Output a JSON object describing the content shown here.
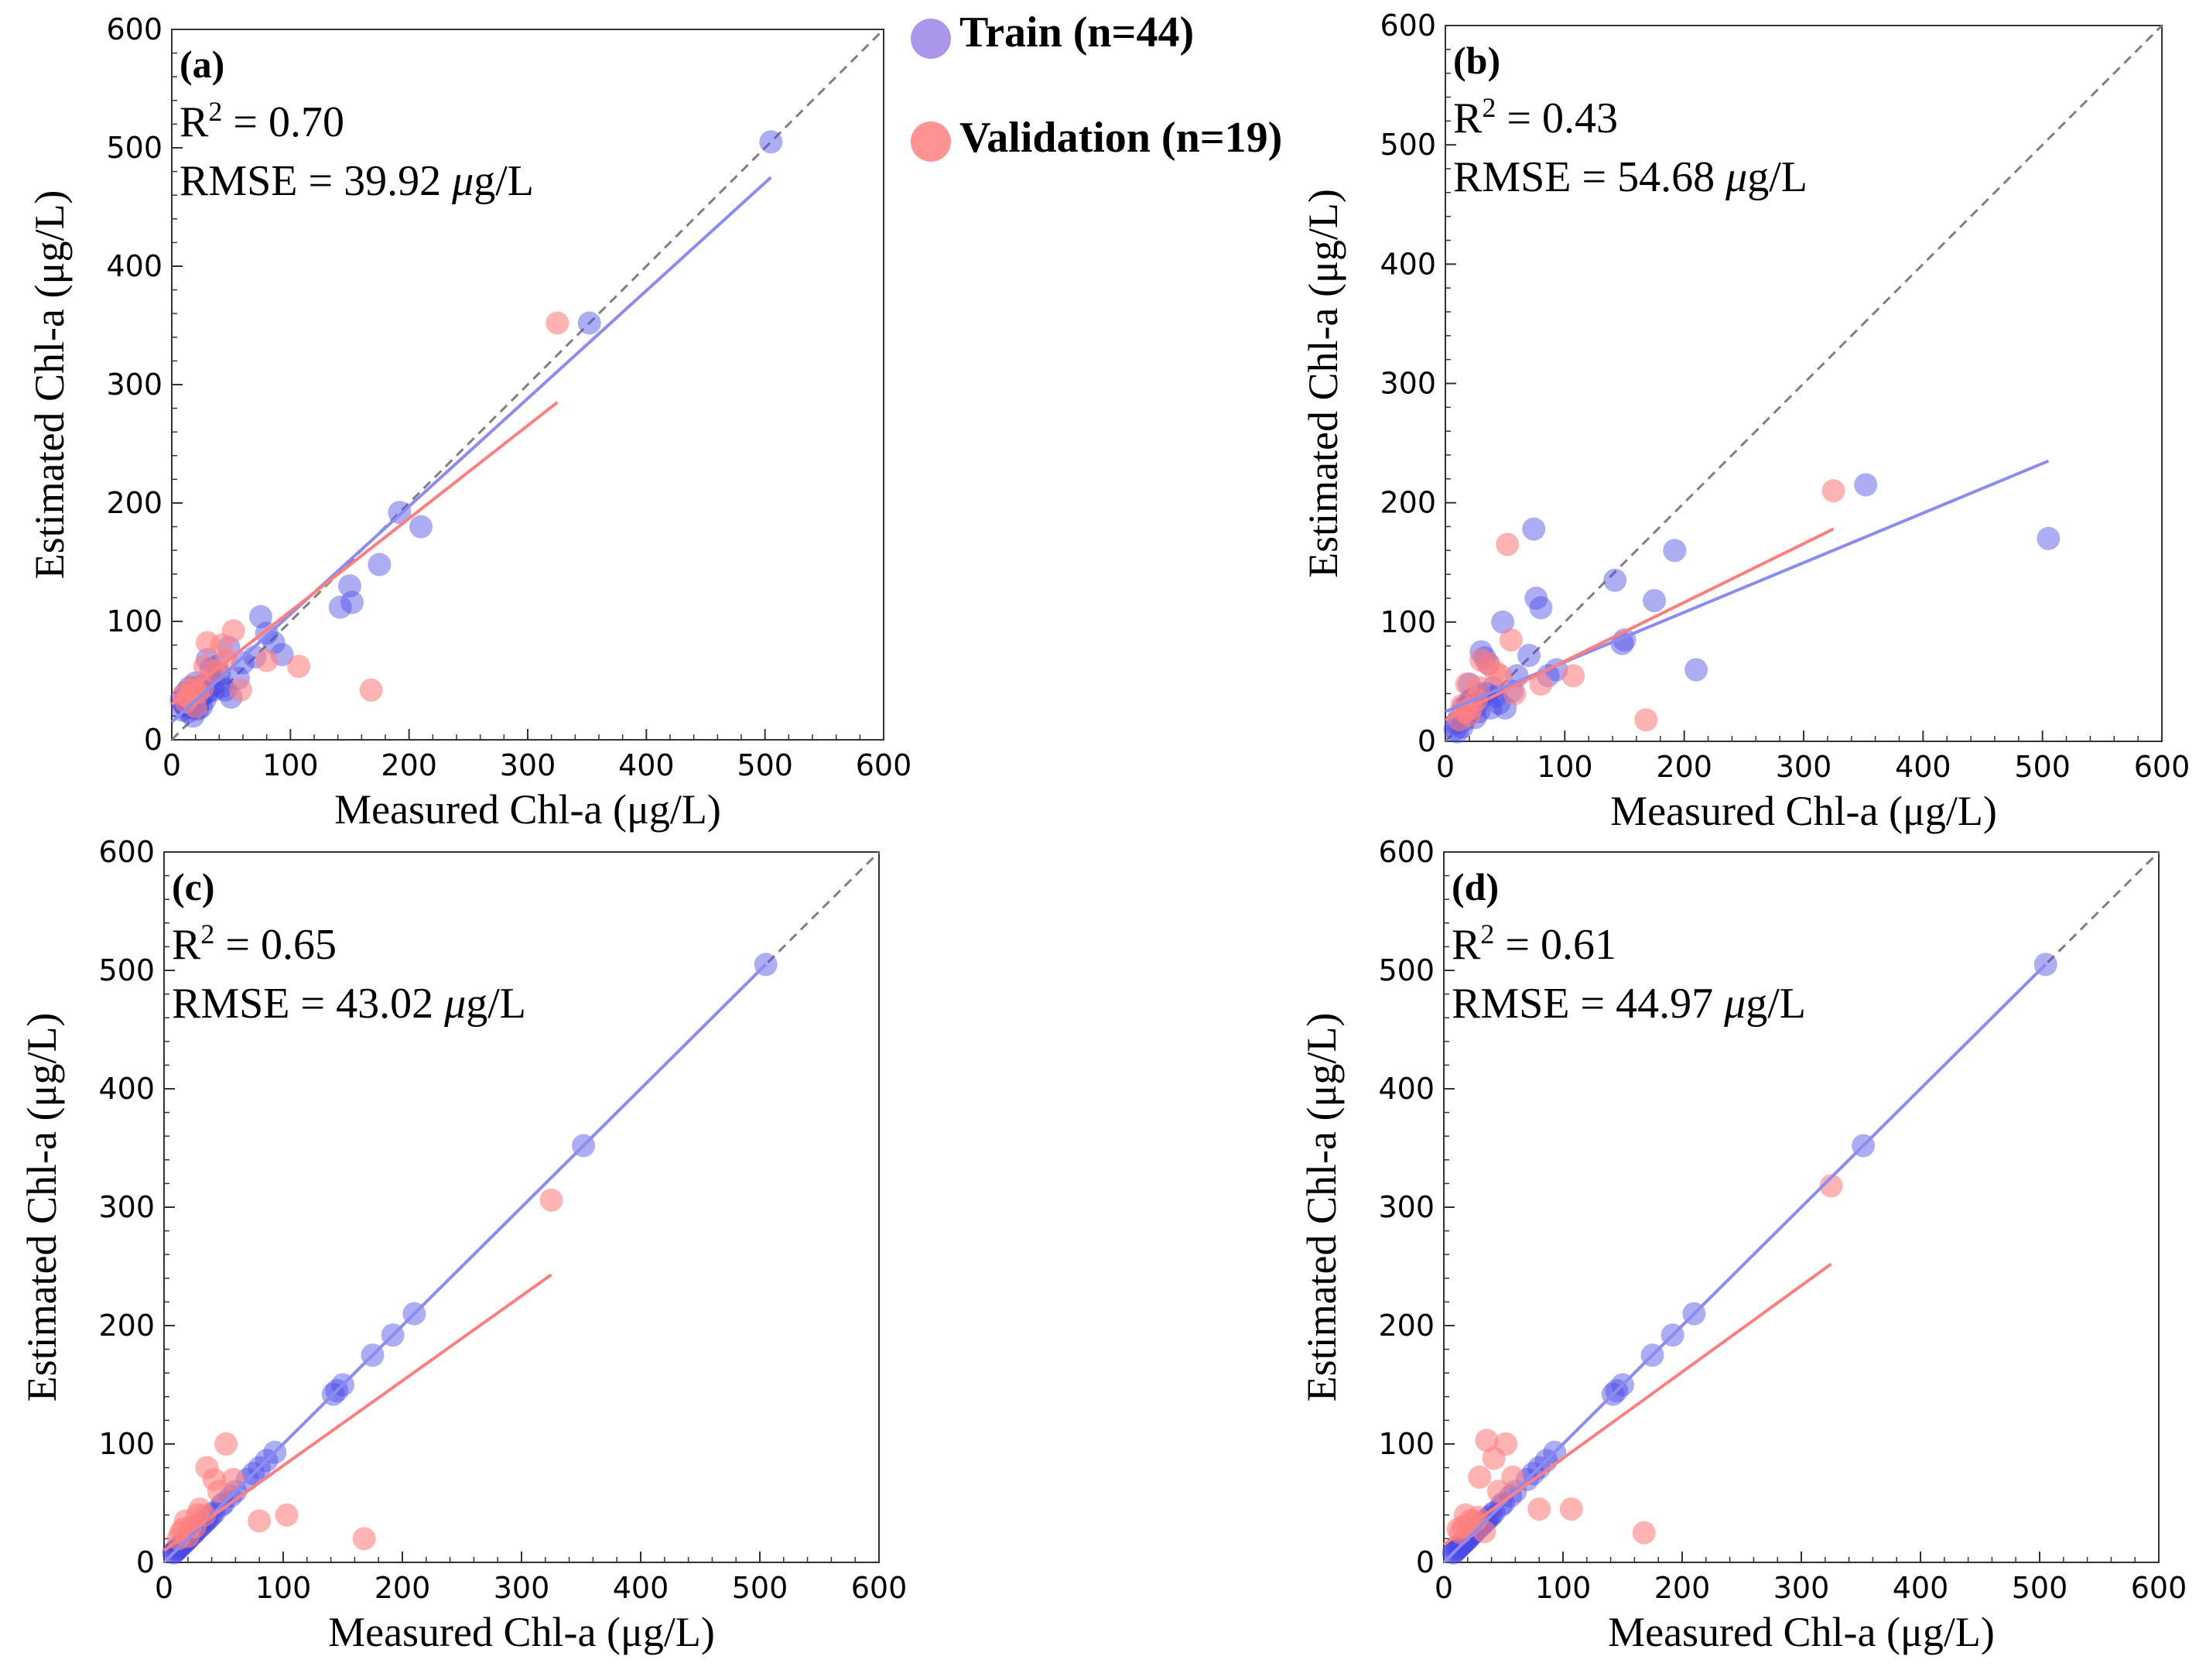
{
  "legend": {
    "items": [
      {
        "label": "Train (n=44)",
        "color": "#9b85e8"
      },
      {
        "label": "Validation (n=19)",
        "color": "#ff7f7f"
      }
    ]
  },
  "colors": {
    "train_point": "#4a4ae6",
    "train_line": "#8c8cf0",
    "validation_point": "#ff8080",
    "validation_line": "#ff7f7f",
    "identity_line": "#808080"
  },
  "chart_data": [
    {
      "type": "scatter",
      "panel": "(a)",
      "r2_label": "R",
      "r2_sup": "2",
      "r2_value": " = 0.70",
      "rmse_prefix": "RMSE = 39.92 ",
      "rmse_unit_mu": "μ",
      "rmse_unit_rest": "g/L",
      "xlabel": "Measured Chl-a (μg/L)",
      "ylabel": "Estimated Chl-a (μg/L)",
      "xlim": [
        0,
        600
      ],
      "ylim": [
        0,
        600
      ],
      "ticks": [
        0,
        100,
        200,
        300,
        400,
        500,
        600
      ],
      "train_points": [
        [
          505,
          505
        ],
        [
          352,
          352
        ],
        [
          210,
          180
        ],
        [
          192,
          192
        ],
        [
          175,
          148
        ],
        [
          150,
          130
        ],
        [
          152,
          116
        ],
        [
          142,
          112
        ],
        [
          93,
          72
        ],
        [
          86,
          82
        ],
        [
          80,
          90
        ],
        [
          75,
          104
        ],
        [
          70,
          70
        ],
        [
          56,
          52
        ],
        [
          50,
          36
        ],
        [
          48,
          78
        ],
        [
          40,
          55
        ],
        [
          36,
          48
        ],
        [
          33,
          60
        ],
        [
          30,
          68
        ],
        [
          30,
          40
        ],
        [
          26,
          38
        ],
        [
          24,
          45
        ],
        [
          22,
          32
        ],
        [
          20,
          48
        ],
        [
          18,
          27
        ],
        [
          16,
          36
        ],
        [
          14,
          24
        ],
        [
          12,
          40
        ],
        [
          10,
          30
        ],
        [
          9,
          25
        ],
        [
          8,
          34
        ],
        [
          35,
          42
        ],
        [
          42,
          45
        ],
        [
          28,
          34
        ],
        [
          20,
          38
        ],
        [
          15,
          44
        ],
        [
          25,
          28
        ],
        [
          45,
          42
        ],
        [
          60,
          65
        ],
        [
          38,
          62
        ],
        [
          18,
          20
        ],
        [
          22,
          26
        ],
        [
          12,
          28
        ]
      ],
      "validation_points": [
        [
          325,
          352
        ],
        [
          168,
          42
        ],
        [
          107,
          62
        ],
        [
          80,
          67
        ],
        [
          58,
          42
        ],
        [
          52,
          92
        ],
        [
          42,
          80
        ],
        [
          30,
          82
        ],
        [
          46,
          67
        ],
        [
          36,
          58
        ],
        [
          22,
          40
        ],
        [
          18,
          45
        ],
        [
          28,
          62
        ],
        [
          14,
          36
        ],
        [
          20,
          28
        ],
        [
          12,
          32
        ],
        [
          26,
          44
        ],
        [
          16,
          42
        ],
        [
          10,
          38
        ]
      ],
      "train_fit": [
        [
          0,
          15
        ],
        [
          505,
          475
        ]
      ],
      "validation_fit": [
        [
          0,
          30
        ],
        [
          325,
          285
        ]
      ]
    },
    {
      "type": "scatter",
      "panel": "(b)",
      "r2_label": "R",
      "r2_sup": "2",
      "r2_value": " = 0.43",
      "rmse_prefix": "RMSE = 54.68 ",
      "rmse_unit_mu": "μ",
      "rmse_unit_rest": "g/L",
      "xlabel": "Measured Chl-a (μg/L)",
      "ylabel": "Estimated Chl-a (μg/L)",
      "xlim": [
        0,
        600
      ],
      "ylim": [
        0,
        600
      ],
      "ticks": [
        0,
        100,
        200,
        300,
        400,
        500,
        600
      ],
      "train_points": [
        [
          505,
          170
        ],
        [
          352,
          215
        ],
        [
          210,
          60
        ],
        [
          192,
          160
        ],
        [
          175,
          118
        ],
        [
          148,
          82
        ],
        [
          150,
          85
        ],
        [
          142,
          135
        ],
        [
          93,
          60
        ],
        [
          86,
          55
        ],
        [
          80,
          112
        ],
        [
          76,
          120
        ],
        [
          74,
          178
        ],
        [
          70,
          72
        ],
        [
          56,
          42
        ],
        [
          50,
          28
        ],
        [
          48,
          100
        ],
        [
          40,
          45
        ],
        [
          36,
          65
        ],
        [
          33,
          70
        ],
        [
          30,
          75
        ],
        [
          30,
          40
        ],
        [
          26,
          30
        ],
        [
          24,
          35
        ],
        [
          22,
          26
        ],
        [
          20,
          48
        ],
        [
          18,
          30
        ],
        [
          16,
          18
        ],
        [
          14,
          12
        ],
        [
          12,
          22
        ],
        [
          10,
          8
        ],
        [
          9,
          15
        ],
        [
          8,
          10
        ],
        [
          35,
          40
        ],
        [
          42,
          38
        ],
        [
          28,
          25
        ],
        [
          20,
          33
        ],
        [
          15,
          28
        ],
        [
          25,
          20
        ],
        [
          45,
          32
        ],
        [
          60,
          55
        ],
        [
          38,
          28
        ],
        [
          18,
          22
        ],
        [
          22,
          35
        ]
      ],
      "validation_points": [
        [
          325,
          210
        ],
        [
          168,
          18
        ],
        [
          107,
          55
        ],
        [
          80,
          48
        ],
        [
          58,
          40
        ],
        [
          52,
          165
        ],
        [
          42,
          58
        ],
        [
          30,
          68
        ],
        [
          46,
          55
        ],
        [
          36,
          65
        ],
        [
          22,
          28
        ],
        [
          18,
          48
        ],
        [
          28,
          45
        ],
        [
          14,
          30
        ],
        [
          20,
          22
        ],
        [
          12,
          18
        ],
        [
          26,
          35
        ],
        [
          16,
          25
        ],
        [
          55,
          85
        ]
      ],
      "train_fit": [
        [
          0,
          25
        ],
        [
          505,
          235
        ]
      ],
      "validation_fit": [
        [
          0,
          18
        ],
        [
          325,
          178
        ]
      ]
    },
    {
      "type": "scatter",
      "panel": "(c)",
      "r2_label": "R",
      "r2_sup": "2",
      "r2_value": " = 0.65",
      "rmse_prefix": "RMSE = 43.02 ",
      "rmse_unit_mu": "μ",
      "rmse_unit_rest": "g/L",
      "xlabel": "Measured Chl-a (μg/L)",
      "ylabel": "Estimated Chl-a (μg/L)",
      "xlim": [
        0,
        600
      ],
      "ylim": [
        0,
        600
      ],
      "ticks": [
        0,
        100,
        200,
        300,
        400,
        500,
        600
      ],
      "train_points": [
        [
          505,
          505
        ],
        [
          352,
          352
        ],
        [
          210,
          210
        ],
        [
          192,
          192
        ],
        [
          175,
          175
        ],
        [
          150,
          150
        ],
        [
          145,
          145
        ],
        [
          142,
          142
        ],
        [
          93,
          93
        ],
        [
          86,
          86
        ],
        [
          80,
          80
        ],
        [
          75,
          75
        ],
        [
          70,
          70
        ],
        [
          56,
          56
        ],
        [
          50,
          50
        ],
        [
          48,
          48
        ],
        [
          40,
          40
        ],
        [
          36,
          36
        ],
        [
          33,
          33
        ],
        [
          30,
          30
        ],
        [
          28,
          28
        ],
        [
          26,
          26
        ],
        [
          24,
          24
        ],
        [
          22,
          22
        ],
        [
          20,
          20
        ],
        [
          18,
          18
        ],
        [
          16,
          16
        ],
        [
          14,
          14
        ],
        [
          12,
          12
        ],
        [
          10,
          10
        ],
        [
          9,
          9
        ],
        [
          8,
          8
        ],
        [
          35,
          35
        ],
        [
          42,
          42
        ],
        [
          38,
          38
        ],
        [
          32,
          32
        ],
        [
          25,
          25
        ],
        [
          21,
          21
        ],
        [
          19,
          19
        ],
        [
          17,
          17
        ],
        [
          15,
          15
        ],
        [
          13,
          13
        ],
        [
          11,
          11
        ],
        [
          60,
          60
        ]
      ],
      "validation_points": [
        [
          325,
          306
        ],
        [
          168,
          20
        ],
        [
          103,
          40
        ],
        [
          80,
          35
        ],
        [
          58,
          70
        ],
        [
          52,
          100
        ],
        [
          42,
          70
        ],
        [
          36,
          80
        ],
        [
          46,
          60
        ],
        [
          30,
          45
        ],
        [
          22,
          30
        ],
        [
          18,
          35
        ],
        [
          28,
          40
        ],
        [
          14,
          25
        ],
        [
          20,
          22
        ],
        [
          12,
          20
        ],
        [
          26,
          30
        ],
        [
          16,
          28
        ],
        [
          34,
          40
        ]
      ],
      "train_fit": [
        [
          0,
          0
        ],
        [
          505,
          505
        ]
      ],
      "validation_fit": [
        [
          0,
          10
        ],
        [
          325,
          243
        ]
      ]
    },
    {
      "type": "scatter",
      "panel": "(d)",
      "r2_label": "R",
      "r2_sup": "2",
      "r2_value": " = 0.61",
      "rmse_prefix": "RMSE = 44.97 ",
      "rmse_unit_mu": "μ",
      "rmse_unit_rest": "g/L",
      "xlabel": "Measured Chl-a (μg/L)",
      "ylabel": "Estimated Chl-a (μg/L)",
      "xlim": [
        0,
        600
      ],
      "ylim": [
        0,
        600
      ],
      "ticks": [
        0,
        100,
        200,
        300,
        400,
        500,
        600
      ],
      "train_points": [
        [
          505,
          505
        ],
        [
          352,
          352
        ],
        [
          210,
          210
        ],
        [
          192,
          192
        ],
        [
          175,
          175
        ],
        [
          150,
          150
        ],
        [
          145,
          145
        ],
        [
          142,
          142
        ],
        [
          93,
          93
        ],
        [
          86,
          86
        ],
        [
          80,
          80
        ],
        [
          75,
          75
        ],
        [
          70,
          70
        ],
        [
          56,
          56
        ],
        [
          50,
          50
        ],
        [
          48,
          48
        ],
        [
          40,
          40
        ],
        [
          36,
          36
        ],
        [
          33,
          33
        ],
        [
          30,
          30
        ],
        [
          28,
          28
        ],
        [
          26,
          26
        ],
        [
          24,
          24
        ],
        [
          22,
          22
        ],
        [
          20,
          20
        ],
        [
          18,
          18
        ],
        [
          16,
          16
        ],
        [
          14,
          14
        ],
        [
          12,
          12
        ],
        [
          10,
          10
        ],
        [
          9,
          9
        ],
        [
          8,
          8
        ],
        [
          35,
          35
        ],
        [
          42,
          42
        ],
        [
          38,
          38
        ],
        [
          32,
          32
        ],
        [
          25,
          25
        ],
        [
          21,
          21
        ],
        [
          19,
          19
        ],
        [
          17,
          17
        ],
        [
          15,
          15
        ],
        [
          13,
          13
        ],
        [
          11,
          11
        ],
        [
          60,
          60
        ]
      ],
      "validation_points": [
        [
          325,
          318
        ],
        [
          168,
          25
        ],
        [
          107,
          45
        ],
        [
          80,
          45
        ],
        [
          58,
          72
        ],
        [
          52,
          100
        ],
        [
          42,
          88
        ],
        [
          36,
          103
        ],
        [
          46,
          60
        ],
        [
          30,
          72
        ],
        [
          22,
          35
        ],
        [
          18,
          40
        ],
        [
          28,
          38
        ],
        [
          14,
          25
        ],
        [
          20,
          30
        ],
        [
          12,
          28
        ],
        [
          26,
          35
        ],
        [
          16,
          30
        ],
        [
          34,
          26
        ]
      ],
      "train_fit": [
        [
          0,
          0
        ],
        [
          505,
          505
        ]
      ],
      "validation_fit": [
        [
          0,
          15
        ],
        [
          325,
          252
        ]
      ]
    }
  ]
}
